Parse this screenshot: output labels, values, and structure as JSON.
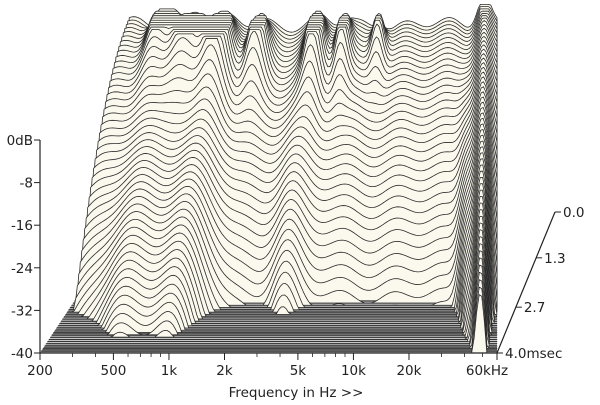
{
  "chart_data": {
    "type": "waterfall",
    "title": "",
    "xlabel": "Frequency in Hz >>",
    "x_scale": "log",
    "xlim": [
      200,
      60000
    ],
    "x_ticks": [
      {
        "value": 200,
        "label": "200"
      },
      {
        "value": 500,
        "label": "500"
      },
      {
        "value": 1000,
        "label": "1k"
      },
      {
        "value": 2000,
        "label": "2k"
      },
      {
        "value": 5000,
        "label": "5k"
      },
      {
        "value": 10000,
        "label": "10k"
      },
      {
        "value": 20000,
        "label": "20k"
      },
      {
        "value": 60000,
        "label": "60kHz"
      }
    ],
    "y_unit": "dB",
    "ylim": [
      -40,
      0
    ],
    "y_ticks": [
      {
        "value": 0,
        "label": "0dB"
      },
      {
        "value": -8,
        "label": "-8"
      },
      {
        "value": -16,
        "label": "-16"
      },
      {
        "value": -24,
        "label": "-24"
      },
      {
        "value": -32,
        "label": "-32"
      },
      {
        "value": -40,
        "label": "-40"
      }
    ],
    "time_unit": "msec",
    "tlim": [
      0,
      4.0
    ],
    "t_ticks": [
      {
        "value": 0.0,
        "label": "0.0"
      },
      {
        "value": 1.3,
        "label": "1.3"
      },
      {
        "value": 2.7,
        "label": "2.7"
      },
      {
        "value": 4.0,
        "label": "4.0msec"
      }
    ],
    "slice_count": 56,
    "colors": {
      "surface_fill": "#fbf9ee",
      "slice_line": "#2a2a2a",
      "floor_a": "#5a5a5a",
      "floor_b": "#d8d8d8",
      "axis": "#222222"
    }
  }
}
